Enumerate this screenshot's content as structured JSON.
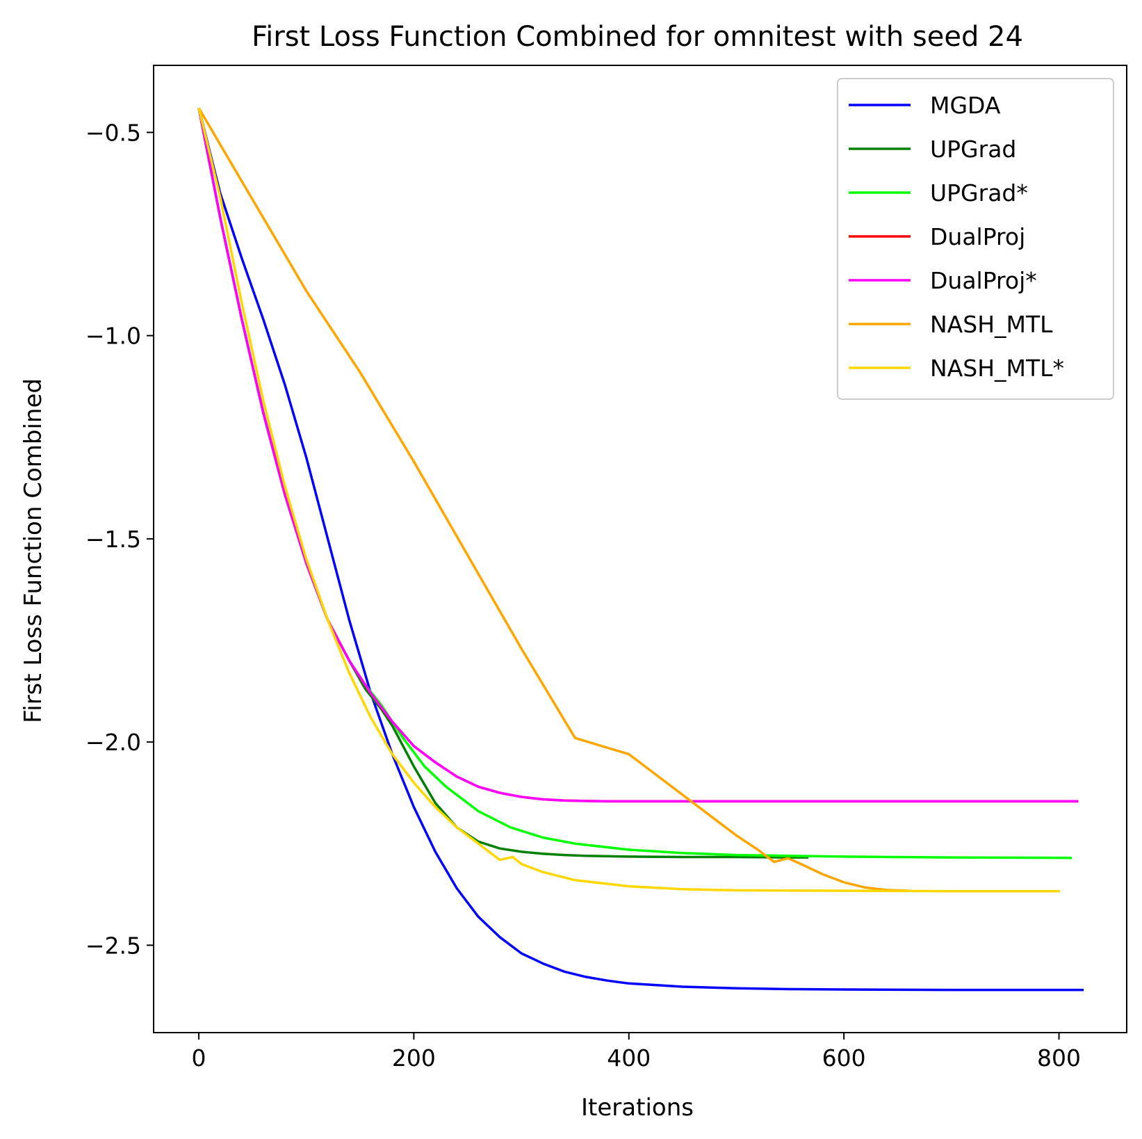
{
  "chart_data": {
    "type": "line",
    "title": "First Loss Function Combined for omnitest with seed 24",
    "xlabel": "Iterations",
    "ylabel": "First Loss Function Combined",
    "xlim": [
      -42,
      863
    ],
    "ylim": [
      -2.715,
      -0.335
    ],
    "xticks": [
      0,
      200,
      400,
      600,
      800
    ],
    "xtick_labels": [
      "0",
      "200",
      "400",
      "600",
      "800"
    ],
    "yticks": [
      -0.5,
      -1.0,
      -1.5,
      -2.0,
      -2.5
    ],
    "ytick_labels": [
      "−0.5",
      "−1.0",
      "−1.5",
      "−2.0",
      "−2.5"
    ],
    "grid": false,
    "legend_position": "top-right",
    "series": [
      {
        "name": "MGDA",
        "color": "#0000ff",
        "x": [
          0,
          20,
          40,
          60,
          80,
          100,
          120,
          140,
          160,
          180,
          200,
          220,
          240,
          260,
          280,
          300,
          320,
          340,
          360,
          380,
          400,
          450,
          500,
          550,
          600,
          700,
          823
        ],
        "y": [
          -0.44,
          -0.65,
          -0.81,
          -0.96,
          -1.12,
          -1.3,
          -1.5,
          -1.7,
          -1.88,
          -2.03,
          -2.16,
          -2.27,
          -2.36,
          -2.43,
          -2.48,
          -2.52,
          -2.545,
          -2.565,
          -2.578,
          -2.587,
          -2.594,
          -2.602,
          -2.606,
          -2.608,
          -2.609,
          -2.61,
          -2.61
        ]
      },
      {
        "name": "UPGrad",
        "color": "#008000",
        "x": [
          0,
          20,
          40,
          60,
          80,
          100,
          120,
          140,
          155,
          170,
          180,
          200,
          220,
          240,
          260,
          280,
          300,
          320,
          340,
          360,
          400,
          450,
          500,
          550,
          567
        ],
        "y": [
          -0.44,
          -0.71,
          -0.96,
          -1.19,
          -1.39,
          -1.56,
          -1.7,
          -1.8,
          -1.87,
          -1.92,
          -1.96,
          -2.06,
          -2.15,
          -2.21,
          -2.245,
          -2.262,
          -2.27,
          -2.275,
          -2.278,
          -2.28,
          -2.282,
          -2.283,
          -2.283,
          -2.284,
          -2.284
        ]
      },
      {
        "name": "UPGrad*",
        "color": "#00ff00",
        "x": [
          0,
          20,
          40,
          60,
          80,
          100,
          120,
          140,
          155,
          170,
          190,
          210,
          230,
          260,
          290,
          320,
          350,
          400,
          450,
          500,
          600,
          700,
          812
        ],
        "y": [
          -0.44,
          -0.71,
          -0.96,
          -1.19,
          -1.39,
          -1.56,
          -1.7,
          -1.8,
          -1.86,
          -1.91,
          -1.99,
          -2.06,
          -2.11,
          -2.17,
          -2.21,
          -2.235,
          -2.25,
          -2.265,
          -2.273,
          -2.278,
          -2.282,
          -2.284,
          -2.285
        ]
      },
      {
        "name": "DualProj",
        "color": "#ff0000",
        "x": [
          0,
          20,
          40,
          60,
          80,
          100,
          120,
          140,
          160,
          180,
          200,
          220,
          240,
          260,
          280,
          300,
          320,
          340,
          360,
          380,
          400,
          500,
          600,
          700,
          818
        ],
        "y": [
          -0.44,
          -0.71,
          -0.96,
          -1.19,
          -1.39,
          -1.56,
          -1.7,
          -1.8,
          -1.88,
          -1.95,
          -2.01,
          -2.05,
          -2.085,
          -2.11,
          -2.125,
          -2.135,
          -2.141,
          -2.144,
          -2.145,
          -2.146,
          -2.146,
          -2.146,
          -2.146,
          -2.146,
          -2.146
        ]
      },
      {
        "name": "DualProj*",
        "color": "#ff00ff",
        "x": [
          0,
          20,
          40,
          60,
          80,
          100,
          120,
          140,
          160,
          180,
          200,
          220,
          240,
          260,
          280,
          300,
          320,
          340,
          360,
          380,
          400,
          500,
          600,
          700,
          818
        ],
        "y": [
          -0.44,
          -0.71,
          -0.96,
          -1.19,
          -1.39,
          -1.56,
          -1.7,
          -1.8,
          -1.88,
          -1.95,
          -2.01,
          -2.05,
          -2.085,
          -2.11,
          -2.125,
          -2.135,
          -2.141,
          -2.144,
          -2.145,
          -2.146,
          -2.146,
          -2.146,
          -2.146,
          -2.146,
          -2.146
        ]
      },
      {
        "name": "NASH_MTL",
        "color": "#ffa500",
        "x": [
          0,
          50,
          100,
          150,
          200,
          250,
          300,
          350,
          400,
          420,
          440,
          460,
          480,
          500,
          520,
          535,
          548,
          560,
          580,
          600,
          620,
          640,
          661
        ],
        "y": [
          -0.44,
          -0.665,
          -0.89,
          -1.09,
          -1.31,
          -1.54,
          -1.77,
          -1.99,
          -2.03,
          -2.07,
          -2.11,
          -2.15,
          -2.19,
          -2.23,
          -2.265,
          -2.295,
          -2.286,
          -2.3,
          -2.325,
          -2.345,
          -2.358,
          -2.364,
          -2.366
        ]
      },
      {
        "name": "NASH_MTL*",
        "color": "#ffd700",
        "x": [
          0,
          20,
          40,
          60,
          80,
          100,
          120,
          140,
          160,
          180,
          200,
          220,
          240,
          260,
          280,
          292,
          300,
          320,
          350,
          400,
          450,
          500,
          600,
          700,
          801
        ],
        "y": [
          -0.44,
          -0.66,
          -0.92,
          -1.16,
          -1.37,
          -1.55,
          -1.7,
          -1.83,
          -1.94,
          -2.03,
          -2.1,
          -2.16,
          -2.21,
          -2.25,
          -2.29,
          -2.283,
          -2.3,
          -2.32,
          -2.34,
          -2.355,
          -2.362,
          -2.365,
          -2.366,
          -2.367,
          -2.367
        ]
      }
    ]
  }
}
